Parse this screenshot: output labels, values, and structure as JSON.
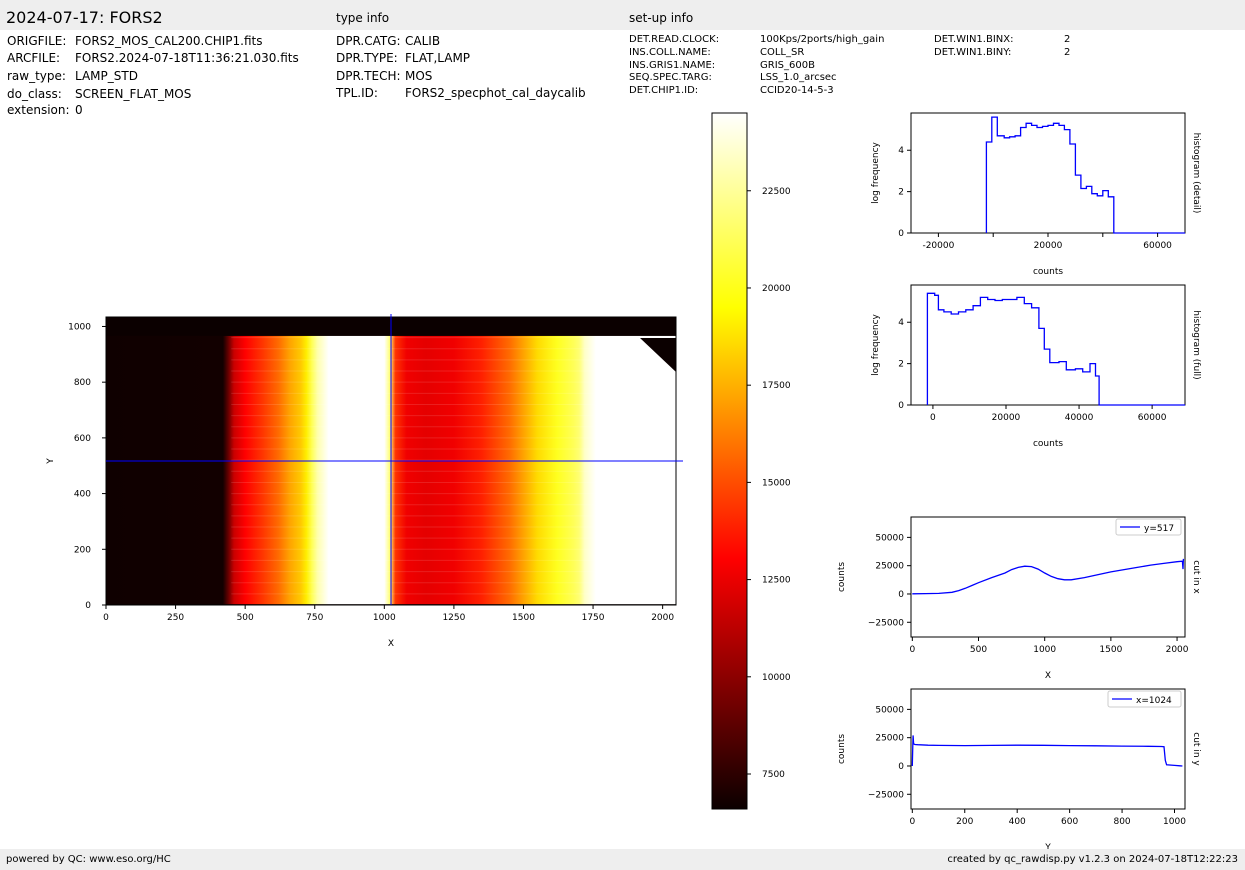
{
  "header": {
    "title": "2024-07-17: FORS2",
    "type_info_label": "type info",
    "setup_info_label": "set-up info"
  },
  "file_info": [
    {
      "key": "ORIGFILE:",
      "value": "FORS2_MOS_CAL200.CHIP1.fits"
    },
    {
      "key": "ARCFILE:",
      "value": "FORS2.2024-07-18T11:36:21.030.fits"
    },
    {
      "key": "raw_type:",
      "value": "LAMP_STD"
    },
    {
      "key": "do_class:",
      "value": "SCREEN_FLAT_MOS"
    },
    {
      "key": "extension:",
      "value": "0"
    }
  ],
  "type_info": [
    {
      "key": "DPR.CATG:",
      "value": "CALIB"
    },
    {
      "key": "DPR.TYPE:",
      "value": "FLAT,LAMP"
    },
    {
      "key": "DPR.TECH:",
      "value": "MOS"
    },
    {
      "key": "TPL.ID:",
      "value": "FORS2_specphot_cal_daycalib"
    }
  ],
  "setup_info": [
    {
      "key": "DET.READ.CLOCK:",
      "value": "100Kps/2ports/high_gain"
    },
    {
      "key": "INS.COLL.NAME:",
      "value": "COLL_SR"
    },
    {
      "key": "INS.GRIS1.NAME:",
      "value": "GRIS_600B"
    },
    {
      "key": "SEQ.SPEC.TARG:",
      "value": "LSS_1.0_arcsec"
    },
    {
      "key": "DET.CHIP1.ID:",
      "value": "CCID20-14-5-3"
    }
  ],
  "setup_info2": [
    {
      "key": "DET.WIN1.BINX:",
      "value": "2"
    },
    {
      "key": "DET.WIN1.BINY:",
      "value": "2"
    }
  ],
  "footer": {
    "left": "powered by QC: www.eso.org/HC",
    "right": "created by qc_rawdisp.py v1.2.3 on 2024-07-18T12:22:23"
  },
  "colors": {
    "line": "#0000ff",
    "header_bg": "#eeeeee"
  },
  "chart_data": [
    {
      "type": "heatmap",
      "xlabel": "X",
      "ylabel": "Y",
      "xlim": [
        0,
        2048
      ],
      "ylim": [
        0,
        1034
      ],
      "xticks": [
        0,
        250,
        500,
        750,
        1000,
        1250,
        1500,
        1750,
        2000
      ],
      "yticks": [
        0,
        200,
        400,
        600,
        800,
        1000
      ],
      "xtick_labels": [
        "0",
        "250",
        "500",
        "750",
        "1000",
        "1250",
        "1500",
        "1750",
        "2000"
      ],
      "ytick_labels": [
        "0",
        "200",
        "400",
        "600",
        "800",
        "1000"
      ],
      "crosshair": {
        "x": 1024,
        "y": 517
      },
      "colormap": "hot",
      "clim": [
        6600,
        24500
      ],
      "colorbar_ticks": [
        7500,
        10000,
        12500,
        15000,
        17500,
        20000,
        22500
      ],
      "colorbar_tick_labels": [
        "7500",
        "10000",
        "12500",
        "15000",
        "17500",
        "20000",
        "22500"
      ],
      "column_profile_x": [
        0,
        420,
        440,
        460,
        500,
        560,
        620,
        660,
        700,
        720,
        740,
        760,
        800,
        850,
        900,
        1000,
        1020,
        1040,
        1080,
        1150,
        1250,
        1350,
        1450,
        1550,
        1620,
        1680,
        1700,
        1720,
        1760,
        1800,
        2048
      ],
      "column_profile_value": [
        6700,
        6800,
        9000,
        11500,
        13000,
        14500,
        16000,
        17500,
        18500,
        19500,
        21500,
        23000,
        24500,
        24500,
        24500,
        24500,
        22000,
        14500,
        12500,
        12200,
        12500,
        14000,
        16000,
        19000,
        20500,
        21500,
        22000,
        23500,
        24500,
        24500,
        24500
      ],
      "illuminated_rows": [
        3,
        966
      ]
    },
    {
      "type": "line",
      "title": "",
      "xlabel": "counts",
      "ylabel": "log frequency",
      "side_label": "histogram (detail)",
      "xlim": [
        -30000,
        70000
      ],
      "ylim": [
        0,
        5.8
      ],
      "xticks": [
        -20000,
        0,
        20000,
        40000,
        60000
      ],
      "xtick_labels": [
        "-20000",
        "",
        "20000",
        "",
        "60000"
      ],
      "yticks": [
        0,
        2,
        4
      ],
      "ytick_labels": [
        "0",
        "2",
        "4"
      ],
      "steps_x": [
        -2500,
        -2500,
        -500,
        -500,
        1500,
        1500,
        4000,
        4000,
        6000,
        6000,
        8000,
        8000,
        10000,
        10000,
        12000,
        12000,
        14000,
        14000,
        16000,
        16000,
        18000,
        18000,
        20000,
        20000,
        22000,
        22000,
        24000,
        24000,
        26000,
        26000,
        28000,
        28000,
        30000,
        30000,
        32000,
        32000,
        34000,
        34000,
        36000,
        36000,
        38000,
        38000,
        40000,
        40000,
        42000,
        42000,
        44000,
        44000,
        46000,
        46000
      ],
      "steps_y": [
        0,
        4.4,
        4.4,
        5.6,
        5.6,
        4.7,
        4.7,
        4.6,
        4.6,
        4.65,
        4.65,
        4.7,
        4.7,
        5.1,
        5.1,
        5.3,
        5.3,
        5.2,
        5.2,
        5.1,
        5.1,
        5.15,
        5.15,
        5.2,
        5.2,
        5.3,
        5.3,
        5.2,
        5.2,
        5.0,
        5.0,
        4.3,
        4.3,
        2.8,
        2.8,
        2.15,
        2.15,
        2.25,
        2.25,
        1.9,
        1.9,
        1.8,
        1.8,
        2.05,
        2.05,
        1.75,
        1.75,
        0,
        0,
        0
      ]
    },
    {
      "type": "line",
      "title": "",
      "xlabel": "counts",
      "ylabel": "log frequency",
      "side_label": "histogram (full)",
      "xlim": [
        -6000,
        69000
      ],
      "ylim": [
        0,
        5.8
      ],
      "xticks": [
        0,
        20000,
        40000,
        60000
      ],
      "xtick_labels": [
        "0",
        "20000",
        "40000",
        "60000"
      ],
      "yticks": [
        0,
        2,
        4
      ],
      "ytick_labels": [
        "0",
        "2",
        "4"
      ],
      "steps_x": [
        -1500,
        -1500,
        500,
        500,
        1500,
        1500,
        3000,
        3000,
        5000,
        5000,
        7000,
        7000,
        9000,
        9000,
        11000,
        11000,
        13000,
        13000,
        15000,
        15000,
        17000,
        17000,
        19000,
        19000,
        21000,
        21000,
        23000,
        23000,
        25000,
        25000,
        27000,
        27000,
        29000,
        29000,
        30500,
        30500,
        32000,
        32000,
        34500,
        34500,
        36500,
        36500,
        39000,
        39000,
        41000,
        41000,
        43000,
        43000,
        44500,
        44500
      ],
      "steps_y": [
        0,
        5.4,
        5.4,
        5.3,
        5.3,
        4.6,
        4.6,
        4.5,
        4.5,
        4.4,
        4.4,
        4.5,
        4.5,
        4.6,
        4.6,
        4.8,
        4.8,
        5.2,
        5.2,
        5.1,
        5.1,
        5.05,
        5.05,
        5.1,
        5.1,
        5.1,
        5.1,
        5.2,
        5.2,
        4.9,
        4.9,
        4.7,
        4.7,
        3.7,
        3.7,
        2.7,
        2.7,
        2.05,
        2.05,
        2.1,
        2.1,
        1.7,
        1.7,
        1.75,
        1.75,
        1.6,
        1.6,
        2.0,
        2.0,
        1.4
      ],
      "steps_end": 45500
    },
    {
      "type": "line",
      "xlabel": "X",
      "ylabel": "counts",
      "side_label": "cut in x",
      "legend": "y=517",
      "legend_position": "top-right",
      "xlim": [
        -10,
        2060
      ],
      "ylim": [
        -38000,
        68000
      ],
      "xticks": [
        0,
        500,
        1000,
        1500,
        2000
      ],
      "xtick_labels": [
        "0",
        "500",
        "1000",
        "1500",
        "2000"
      ],
      "yticks": [
        -25000,
        0,
        25000,
        50000
      ],
      "ytick_labels": [
        "−25000",
        "0",
        "25000",
        "50000"
      ],
      "x": [
        0,
        100,
        200,
        300,
        350,
        400,
        450,
        500,
        600,
        700,
        750,
        800,
        850,
        900,
        950,
        1000,
        1050,
        1100,
        1150,
        1200,
        1300,
        1400,
        1500,
        1600,
        1700,
        1800,
        1900,
        2000,
        2040,
        2045,
        2048
      ],
      "y": [
        200,
        300,
        500,
        1500,
        3000,
        5000,
        7500,
        10000,
        14500,
        18500,
        21500,
        23500,
        24500,
        24200,
        22000,
        18500,
        15500,
        13500,
        12500,
        12500,
        14500,
        17000,
        19500,
        21500,
        23500,
        25500,
        27000,
        28500,
        29000,
        22000,
        31000
      ]
    },
    {
      "type": "line",
      "xlabel": "Y",
      "ylabel": "counts",
      "side_label": "cut in y",
      "legend": "x=1024",
      "legend_position": "top-right",
      "xlim": [
        -5,
        1040
      ],
      "ylim": [
        -38000,
        68000
      ],
      "xticks": [
        0,
        200,
        400,
        600,
        800,
        1000
      ],
      "xtick_labels": [
        "0",
        "200",
        "400",
        "600",
        "800",
        "1000"
      ],
      "yticks": [
        -25000,
        0,
        25000,
        50000
      ],
      "ytick_labels": [
        "−25000",
        "0",
        "25000",
        "50000"
      ],
      "x": [
        0,
        2,
        3,
        5,
        10,
        20,
        60,
        100,
        200,
        300,
        400,
        500,
        600,
        700,
        800,
        900,
        950,
        960,
        965,
        970,
        1000,
        1020,
        1030
      ],
      "y": [
        0,
        18000,
        27000,
        19500,
        19000,
        18800,
        18400,
        18200,
        18000,
        18200,
        18400,
        18300,
        18000,
        17800,
        17600,
        17400,
        17200,
        17000,
        5000,
        1000,
        500,
        200,
        0
      ]
    }
  ]
}
